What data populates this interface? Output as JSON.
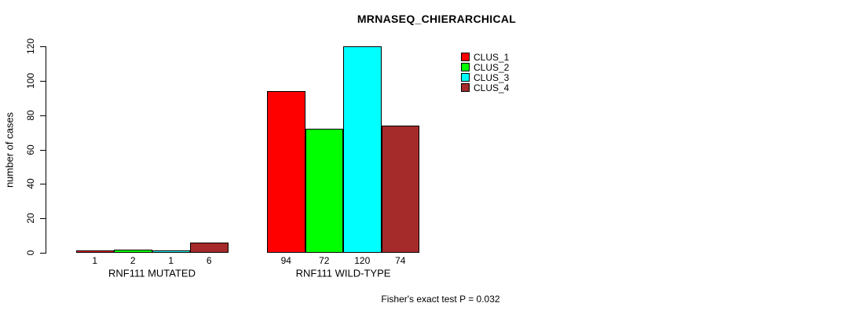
{
  "chart_data": {
    "type": "bar",
    "title": "MRNASEQ_CHIERARCHICAL",
    "ylabel": "number of cases",
    "xlabel": "",
    "ylim": [
      0,
      120
    ],
    "yticks": [
      0,
      20,
      40,
      60,
      80,
      100,
      120
    ],
    "grid": false,
    "legend_position": "top-right",
    "categories": [
      "RNF111 MUTATED",
      "RNF111 WILD-TYPE"
    ],
    "series": [
      {
        "name": "CLUS_1",
        "color": "#FF0000",
        "values": [
          1,
          94
        ]
      },
      {
        "name": "CLUS_2",
        "color": "#00FF00",
        "values": [
          2,
          72
        ]
      },
      {
        "name": "CLUS_3",
        "color": "#00FFFF",
        "values": [
          1,
          120
        ]
      },
      {
        "name": "CLUS_4",
        "color": "#A52A2A",
        "values": [
          6,
          74
        ]
      }
    ],
    "bar_value_labels": [
      [
        1,
        2,
        1,
        6
      ],
      [
        94,
        72,
        120,
        74
      ]
    ],
    "footnote": "Fisher's exact test P = 0.032"
  }
}
